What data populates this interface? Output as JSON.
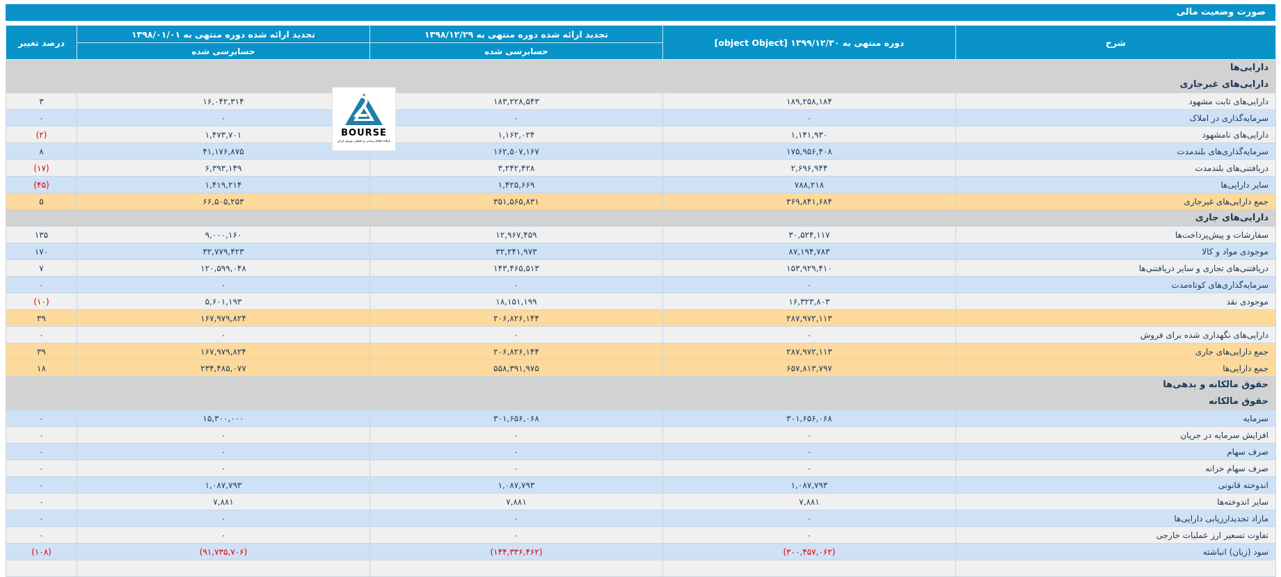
{
  "title": "صورت وضعیت مالی",
  "header": {
    "col_desc": "شرح",
    "col_current": "دوره منتهی به ۱۳۹۹/۱۲/۳۰ [object Object]",
    "col_restated_1": "تجدید ارائه شده دوره منتهی به ۱۳۹۸/۱۲/۲۹",
    "col_restated_2": "تجدید ارائه شده دوره منتهی به ۱۳۹۸/۰۱/۰۱",
    "col_change": "درصد تغییر",
    "audited_1": "حسابرسی شده",
    "audited_2": "حسابرسی شده"
  },
  "logo": {
    "word": "BOURSE",
    "tagline": "پایگاه اطلاع رسانی و تحلیلی بورس ایران"
  },
  "colors": {
    "header_bg": "#0a93c8",
    "total_row": "#fdd99b",
    "section_row": "#d2d2d2",
    "alt_row": "#cfe1f5",
    "negative": "#e00000"
  },
  "rows": [
    {
      "type": "section",
      "label": "دارایی‌ها",
      "v1": "",
      "v2": "",
      "v3": "",
      "ch": ""
    },
    {
      "type": "section",
      "label": "دارایی‌های غیرجاری",
      "v1": "",
      "v2": "",
      "v3": "",
      "ch": ""
    },
    {
      "type": "gray",
      "label": "دارایی‌های ثابت مشهود",
      "v1": "۱۸۹,۲۵۸,۱۸۴",
      "v2": "۱۸۳,۲۲۸,۵۴۳",
      "v3": "۱۶,۰۴۲,۳۱۴",
      "ch": "۳"
    },
    {
      "type": "blue",
      "label": "سرمایه‌گذاری در املاک",
      "v1": "۰",
      "v2": "۰",
      "v3": "۰",
      "ch": "۰"
    },
    {
      "type": "gray",
      "label": "دارایی‌های نامشهود",
      "v1": "۱,۱۴۱,۹۳۰",
      "v2": "۱,۱۶۲,۰۲۴",
      "v3": "۱,۴۷۳,۷۰۱",
      "ch": "(۲)"
    },
    {
      "type": "blue",
      "label": "سرمایه‌گذاری‌های بلندمدت",
      "v1": "۱۷۵,۹۵۶,۴۰۸",
      "v2": "۱۶۲,۵۰۷,۱۶۷",
      "v3": "۴۱,۱۷۶,۸۷۵",
      "ch": "۸"
    },
    {
      "type": "gray",
      "label": "دریافتنی‌های بلندمدت",
      "v1": "۲,۶۹۶,۹۴۴",
      "v2": "۳,۲۴۲,۴۲۸",
      "v3": "۶,۳۹۳,۱۴۹",
      "ch": "(۱۷)"
    },
    {
      "type": "blue",
      "label": "سایر دارایی‌ها",
      "v1": "۷۸۸,۲۱۸",
      "v2": "۱,۴۲۵,۶۶۹",
      "v3": "۱,۴۱۹,۲۱۴",
      "ch": "(۴۵)"
    },
    {
      "type": "total",
      "label": "جمع دارایی‌های غیرجاری",
      "v1": "۳۶۹,۸۴۱,۶۸۴",
      "v2": "۳۵۱,۵۶۵,۸۳۱",
      "v3": "۶۶,۵۰۵,۲۵۳",
      "ch": "۵"
    },
    {
      "type": "section",
      "label": "دارایی‌های جاری",
      "v1": "",
      "v2": "",
      "v3": "",
      "ch": ""
    },
    {
      "type": "gray",
      "label": "سفارشات و پیش‌پرداخت‌ها",
      "v1": "۳۰,۵۲۴,۱۱۷",
      "v2": "۱۲,۹۶۷,۴۵۹",
      "v3": "۹,۰۰۰,۱۶۰",
      "ch": "۱۳۵"
    },
    {
      "type": "blue",
      "label": "موجودی مواد و کالا",
      "v1": "۸۷,۱۹۴,۷۸۳",
      "v2": "۳۲,۲۴۱,۹۷۳",
      "v3": "۳۲,۷۷۹,۴۲۳",
      "ch": "۱۷۰"
    },
    {
      "type": "gray",
      "label": "دریافتنی‌های تجاری و سایر دریافتنی‌ها",
      "v1": "۱۵۳,۹۲۹,۴۱۰",
      "v2": "۱۴۳,۴۶۵,۵۱۳",
      "v3": "۱۲۰,۵۹۹,۰۴۸",
      "ch": "۷"
    },
    {
      "type": "blue",
      "label": "سرمایه‌گذاری‌های کوتاه‌مدت",
      "v1": "۰",
      "v2": "۰",
      "v3": "۰",
      "ch": "۰"
    },
    {
      "type": "gray",
      "label": "موجودی نقد",
      "v1": "۱۶,۳۲۳,۸۰۳",
      "v2": "۱۸,۱۵۱,۱۹۹",
      "v3": "۵,۶۰۱,۱۹۳",
      "ch": "(۱۰)"
    },
    {
      "type": "total",
      "label": "",
      "v1": "۲۸۷,۹۷۲,۱۱۳",
      "v2": "۲۰۶,۸۲۶,۱۴۴",
      "v3": "۱۶۷,۹۷۹,۸۲۴",
      "ch": "۳۹"
    },
    {
      "type": "gray",
      "label": "دارایی‌های نگهداری شده برای فروش",
      "v1": "۰",
      "v2": "۰",
      "v3": "۰",
      "ch": "۰"
    },
    {
      "type": "total",
      "label": "جمع دارایی‌های جاری",
      "v1": "۲۸۷,۹۷۲,۱۱۳",
      "v2": "۲۰۶,۸۲۶,۱۴۴",
      "v3": "۱۶۷,۹۷۹,۸۲۴",
      "ch": "۳۹"
    },
    {
      "type": "total",
      "label": "جمع دارایی‌ها",
      "v1": "۶۵۷,۸۱۳,۷۹۷",
      "v2": "۵۵۸,۳۹۱,۹۷۵",
      "v3": "۲۳۴,۴۸۵,۰۷۷",
      "ch": "۱۸"
    },
    {
      "type": "section",
      "label": "حقوق مالکانه و بدهی‌ها",
      "v1": "",
      "v2": "",
      "v3": "",
      "ch": ""
    },
    {
      "type": "section",
      "label": "حقوق مالکانه",
      "v1": "",
      "v2": "",
      "v3": "",
      "ch": ""
    },
    {
      "type": "blue",
      "label": "سرمایه",
      "v1": "۳۰۱,۶۵۶,۰۶۸",
      "v2": "۳۰۱,۶۵۶,۰۶۸",
      "v3": "۱۵,۳۰۰,۰۰۰",
      "ch": "۰"
    },
    {
      "type": "gray",
      "label": "افزایش سرمایه در جریان",
      "v1": "۰",
      "v2": "۰",
      "v3": "۰",
      "ch": "۰"
    },
    {
      "type": "blue",
      "label": "صرف سهام",
      "v1": "۰",
      "v2": "۰",
      "v3": "۰",
      "ch": "۰"
    },
    {
      "type": "gray",
      "label": "صرف سهام خزانه",
      "v1": "۰",
      "v2": "۰",
      "v3": "۰",
      "ch": "۰"
    },
    {
      "type": "blue",
      "label": "اندوخته قانونی",
      "v1": "۱,۰۸۷,۷۹۳",
      "v2": "۱,۰۸۷,۷۹۳",
      "v3": "۱,۰۸۷,۷۹۳",
      "ch": "۰"
    },
    {
      "type": "gray",
      "label": "سایر اندوخته‌ها",
      "v1": "۷,۸۸۱",
      "v2": "۷,۸۸۱",
      "v3": "۷,۸۸۱",
      "ch": "۰"
    },
    {
      "type": "blue",
      "label": "مازاد تجدیدارزیابی دارایی‌ها",
      "v1": "۰",
      "v2": "۰",
      "v3": "۰",
      "ch": "۰"
    },
    {
      "type": "gray",
      "label": "تفاوت تسعیر ارز عملیات خارجی",
      "v1": "۰",
      "v2": "۰",
      "v3": "۰",
      "ch": "۰"
    },
    {
      "type": "blue",
      "label": "سود (زیان) انباشته",
      "v1": "(۳۰۰,۴۵۷,۰۶۲)",
      "v2": "(۱۴۴,۳۳۶,۴۶۲)",
      "v3": "(۹۱,۷۳۵,۷۰۶)",
      "ch": "(۱۰۸)"
    },
    {
      "type": "gray",
      "label": "",
      "v1": "",
      "v2": "",
      "v3": "",
      "ch": ""
    }
  ]
}
